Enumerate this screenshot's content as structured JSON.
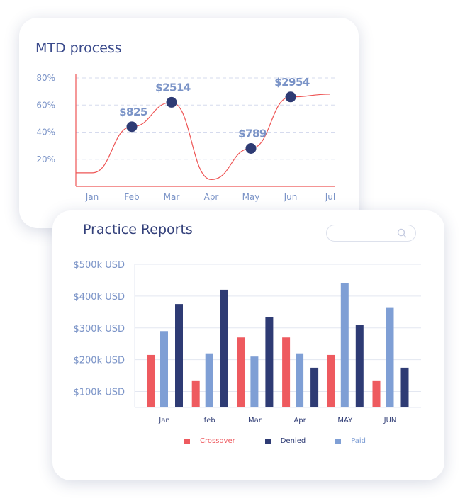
{
  "colors": {
    "title": "#3b4b8c",
    "axis_text": "#7a93c7",
    "line": "#ee5555",
    "marker": "#2e3b74",
    "grid": "#d6dbee",
    "crossover": "#ee5a5f",
    "denied": "#2e3b74",
    "paid": "#7f9fd5"
  },
  "mtd": {
    "title": "MTD process"
  },
  "practice": {
    "title": "Practice Reports",
    "search": {
      "placeholder": ""
    },
    "legend": [
      {
        "name": "Crossover",
        "color": "#ee5a5f"
      },
      {
        "name": "Denied",
        "color": "#2e3b74"
      },
      {
        "name": "Paid",
        "color": "#7f9fd5"
      }
    ]
  },
  "chart_data": [
    {
      "type": "line",
      "title": "MTD process",
      "x": [
        "Jan",
        "Feb",
        "Mar",
        "Apr",
        "May",
        "Jun",
        "Jul"
      ],
      "ylim": [
        0,
        80
      ],
      "yticks": [
        "20%",
        "40%",
        "60%",
        "80%"
      ],
      "grid": true,
      "series": [
        {
          "values": [
            10,
            44,
            62,
            5,
            28,
            66,
            68
          ]
        }
      ],
      "markers": [
        {
          "x": "Feb",
          "y": 44,
          "label": "$825"
        },
        {
          "x": "Mar",
          "y": 62,
          "label": "$2514"
        },
        {
          "x": "May",
          "y": 28,
          "label": "$789"
        },
        {
          "x": "Jun",
          "y": 66,
          "label": "$2954"
        }
      ]
    },
    {
      "type": "bar",
      "title": "Practice Reports",
      "categories": [
        "Jan",
        "feb",
        "Mar",
        "Apr",
        "MAY",
        "JUN"
      ],
      "ylim": [
        50,
        500
      ],
      "yticks": [
        "$100k USD",
        "$200k USD",
        "$300k USD",
        "$400k USD",
        "$500k USD"
      ],
      "grid": true,
      "legend_position": "bottom",
      "series": [
        {
          "name": "Crossover",
          "values": [
            215,
            135,
            270,
            270,
            215,
            135
          ]
        },
        {
          "name": "Paid",
          "values": [
            290,
            220,
            210,
            220,
            440,
            365
          ]
        },
        {
          "name": "Denied",
          "values": [
            375,
            420,
            335,
            175,
            310,
            175
          ]
        }
      ]
    }
  ]
}
